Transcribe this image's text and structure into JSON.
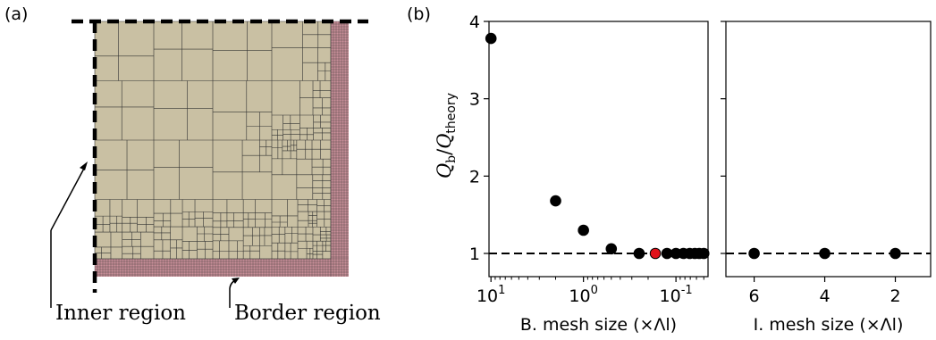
{
  "panel_a": {
    "label": "(a)",
    "inner_region_label": "Inner region",
    "border_region_label": "Border region",
    "colors": {
      "inner_fill": "#c9c0a3",
      "border_fill": "#c98f99",
      "mesh_line": "#333333"
    }
  },
  "panel_b": {
    "label": "(b)"
  },
  "chart_data": [
    {
      "type": "scatter",
      "title": "",
      "xlabel": "B. mesh size (×Λl)",
      "ylabel": "Q_b/Q_theory",
      "ylabel_main": "Q",
      "ylabel_sub1": "b",
      "ylabel_sub2": "theory",
      "xscale": "log",
      "xaxis_reversed": true,
      "xlim": [
        10.5,
        0.045
      ],
      "ylim": [
        0.7,
        4.0
      ],
      "xticks": [
        10,
        1,
        0.1
      ],
      "xtick_labels": [
        {
          "base": "10",
          "exp": "1"
        },
        {
          "base": "10",
          "exp": "0"
        },
        {
          "base": "10",
          "exp": "-1"
        }
      ],
      "yticks": [
        1,
        2,
        3,
        4
      ],
      "ytick_labels": [
        "1",
        "2",
        "3",
        "4"
      ],
      "reference_line": {
        "y": 1,
        "style": "dashed"
      },
      "x": [
        10,
        2,
        1,
        0.5,
        0.25,
        0.167,
        0.125,
        0.1,
        0.083,
        0.071,
        0.0625,
        0.056,
        0.05
      ],
      "y": [
        3.78,
        1.68,
        1.3,
        1.06,
        1.0,
        1.0,
        1.0,
        1.0,
        1.0,
        1.0,
        1.0,
        1.0,
        1.0
      ],
      "highlight": {
        "x": 0.167,
        "y": 1.0,
        "color": "#e0121b"
      },
      "marker_color": "#000000"
    },
    {
      "type": "scatter",
      "title": "",
      "xlabel": "I. mesh size (×Λl)",
      "xlim": [
        6.8,
        1.0
      ],
      "ylim": [
        0.7,
        4.0
      ],
      "xticks": [
        6,
        4,
        2
      ],
      "xtick_labels": [
        "6",
        "4",
        "2"
      ],
      "reference_line": {
        "y": 1,
        "style": "dashed"
      },
      "x": [
        6,
        4,
        2
      ],
      "y": [
        1.0,
        1.0,
        1.0
      ],
      "marker_color": "#000000"
    }
  ]
}
